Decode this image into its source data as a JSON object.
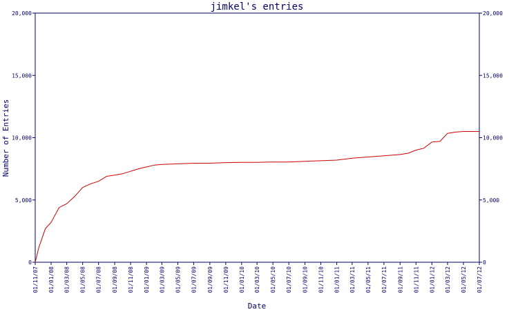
{
  "chart_data": {
    "type": "line",
    "title": "jimkel's entries",
    "xlabel": "Date",
    "ylabel": "Number of Entries",
    "ylim": [
      0,
      20000
    ],
    "y_ticks": [
      "0",
      "5,000",
      "10,000",
      "15,000",
      "20,000"
    ],
    "y_tick_values": [
      0,
      5000,
      10000,
      15000,
      20000
    ],
    "x_range": [
      "2007-11-01",
      "2012-07-01"
    ],
    "x_ticks": [
      "01/11/07",
      "01/01/08",
      "01/03/08",
      "01/05/08",
      "01/07/08",
      "01/09/08",
      "01/11/08",
      "01/01/09",
      "01/03/09",
      "01/05/09",
      "01/07/09",
      "01/09/09",
      "01/11/09",
      "01/01/10",
      "01/03/10",
      "01/05/10",
      "01/07/10",
      "01/09/10",
      "01/11/10",
      "01/01/11",
      "01/03/11",
      "01/05/11",
      "01/07/11",
      "01/09/11",
      "01/11/11",
      "01/01/12",
      "01/03/12",
      "01/05/12",
      "01/07/12"
    ],
    "x_tick_dates": [
      "2007-11-01",
      "2008-01-01",
      "2008-03-01",
      "2008-05-01",
      "2008-07-01",
      "2008-09-01",
      "2008-11-01",
      "2009-01-01",
      "2009-03-01",
      "2009-05-01",
      "2009-07-01",
      "2009-09-01",
      "2009-11-01",
      "2010-01-01",
      "2010-03-01",
      "2010-05-01",
      "2010-07-01",
      "2010-09-01",
      "2010-11-01",
      "2011-01-01",
      "2011-03-01",
      "2011-05-01",
      "2011-07-01",
      "2011-09-01",
      "2011-11-01",
      "2012-01-01",
      "2012-03-01",
      "2012-05-01",
      "2012-07-01"
    ],
    "grid": false,
    "colors": {
      "line": "#cc0000",
      "axis": "#000066",
      "text": "#000066"
    },
    "series": [
      {
        "x": [
          "2007-11-01",
          "2007-11-15",
          "2007-12-10",
          "2008-01-01",
          "2008-02-01",
          "2008-03-01",
          "2008-04-01",
          "2008-05-01",
          "2008-06-01",
          "2008-07-01",
          "2008-08-01",
          "2008-09-01",
          "2008-10-01",
          "2008-11-01",
          "2008-12-01",
          "2009-01-01",
          "2009-02-01",
          "2009-03-01",
          "2009-05-01",
          "2009-07-01",
          "2009-09-01",
          "2009-11-01",
          "2010-01-01",
          "2010-03-01",
          "2010-05-01",
          "2010-07-01",
          "2010-09-01",
          "2010-11-01",
          "2011-01-01",
          "2011-03-01",
          "2011-05-01",
          "2011-07-01",
          "2011-09-01",
          "2011-10-01",
          "2011-11-01",
          "2011-12-01",
          "2012-01-01",
          "2012-02-01",
          "2012-03-01",
          "2012-04-01",
          "2012-05-01",
          "2012-06-01",
          "2012-07-01"
        ],
        "y": [
          0,
          1200,
          2700,
          3200,
          4400,
          4700,
          5300,
          6000,
          6300,
          6500,
          6900,
          7000,
          7100,
          7300,
          7500,
          7650,
          7800,
          7850,
          7900,
          7950,
          7950,
          8000,
          8020,
          8020,
          8050,
          8050,
          8100,
          8150,
          8200,
          8350,
          8450,
          8550,
          8650,
          8750,
          9000,
          9150,
          9650,
          9700,
          10350,
          10450,
          10500,
          10500,
          10500
        ]
      }
    ]
  }
}
